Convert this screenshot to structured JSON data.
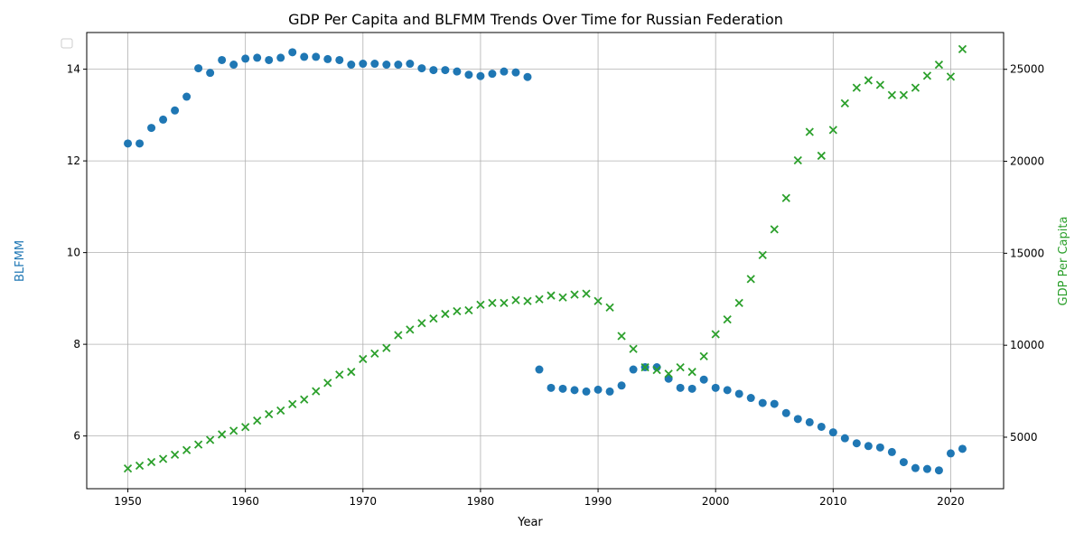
{
  "chart_data": {
    "type": "scatter",
    "title": "GDP Per Capita and BLFMM Trends Over Time for Russian Federation",
    "xlabel": "Year",
    "ylabel_left": "BLFMM",
    "ylabel_right": "GDP Per Capita",
    "xlim": [
      1946.5,
      2024.5
    ],
    "ylim_left": [
      4.85,
      14.8
    ],
    "ylim_right": [
      2200,
      27000
    ],
    "x_ticks": [
      1950,
      1960,
      1970,
      1980,
      1990,
      2000,
      2010,
      2020
    ],
    "y_ticks_left": [
      6,
      8,
      10,
      12,
      14
    ],
    "y_ticks_right": [
      5000,
      10000,
      15000,
      20000,
      25000
    ],
    "grid": true,
    "legend": "top-left (empty)",
    "colors": {
      "blfmm": "#1f77b4",
      "gdp": "#2ca02c"
    },
    "series": [
      {
        "name": "BLFMM",
        "axis": "left",
        "marker": "circle",
        "x": [
          1950,
          1951,
          1952,
          1953,
          1954,
          1955,
          1956,
          1957,
          1958,
          1959,
          1960,
          1961,
          1962,
          1963,
          1964,
          1965,
          1966,
          1967,
          1968,
          1969,
          1970,
          1971,
          1972,
          1973,
          1974,
          1975,
          1976,
          1977,
          1978,
          1979,
          1980,
          1981,
          1982,
          1983,
          1984,
          1985,
          1986,
          1987,
          1988,
          1989,
          1990,
          1991,
          1992,
          1993,
          1994,
          1995,
          1996,
          1997,
          1998,
          1999,
          2000,
          2001,
          2002,
          2003,
          2004,
          2005,
          2006,
          2007,
          2008,
          2009,
          2010,
          2011,
          2012,
          2013,
          2014,
          2015,
          2016,
          2017,
          2018,
          2019,
          2020,
          2021
        ],
        "y": [
          12.38,
          12.38,
          12.72,
          12.9,
          13.1,
          13.4,
          14.02,
          13.92,
          14.2,
          14.1,
          14.23,
          14.25,
          14.2,
          14.25,
          14.37,
          14.27,
          14.27,
          14.22,
          14.2,
          14.1,
          14.12,
          14.12,
          14.1,
          14.1,
          14.12,
          14.02,
          13.98,
          13.98,
          13.95,
          13.88,
          13.85,
          13.9,
          13.95,
          13.93,
          13.83,
          7.45,
          7.05,
          7.03,
          7.0,
          6.97,
          7.01,
          6.97,
          7.1,
          7.45,
          7.5,
          7.5,
          7.25,
          7.05,
          7.03,
          7.23,
          7.05,
          7.0,
          6.92,
          6.83,
          6.72,
          6.7,
          6.5,
          6.37,
          6.3,
          6.2,
          6.08,
          5.95,
          5.84,
          5.78,
          5.75,
          5.65,
          5.43,
          5.3,
          5.28,
          5.25,
          5.62,
          5.72
        ]
      },
      {
        "name": "GDP Per Capita",
        "axis": "right",
        "marker": "x",
        "x": [
          1950,
          1951,
          1952,
          1953,
          1954,
          1955,
          1956,
          1957,
          1958,
          1959,
          1960,
          1961,
          1962,
          1963,
          1964,
          1965,
          1966,
          1967,
          1968,
          1969,
          1970,
          1971,
          1972,
          1973,
          1974,
          1975,
          1976,
          1977,
          1978,
          1979,
          1980,
          1981,
          1982,
          1983,
          1984,
          1985,
          1986,
          1987,
          1988,
          1989,
          1990,
          1991,
          1992,
          1993,
          1994,
          1995,
          1996,
          1997,
          1998,
          1999,
          2000,
          2001,
          2002,
          2003,
          2004,
          2005,
          2006,
          2007,
          2008,
          2009,
          2010,
          2011,
          2012,
          2013,
          2014,
          2015,
          2016,
          2017,
          2018,
          2019,
          2020,
          2021
        ],
        "y": [
          3300,
          3450,
          3650,
          3820,
          4050,
          4300,
          4600,
          4850,
          5150,
          5350,
          5550,
          5900,
          6250,
          6450,
          6800,
          7050,
          7500,
          7950,
          8400,
          8550,
          9250,
          9550,
          9850,
          10550,
          10850,
          11200,
          11450,
          11700,
          11850,
          11900,
          12200,
          12300,
          12300,
          12450,
          12400,
          12500,
          12700,
          12600,
          12750,
          12800,
          12400,
          12050,
          10500,
          9800,
          8800,
          8650,
          8450,
          8800,
          8550,
          9400,
          10600,
          11400,
          12300,
          13600,
          14900,
          16300,
          18000,
          20050,
          21600,
          20300,
          21700,
          23150,
          24000,
          24400,
          24150,
          23600,
          23600,
          24000,
          24650,
          25250,
          24600,
          26100
        ]
      }
    ]
  }
}
